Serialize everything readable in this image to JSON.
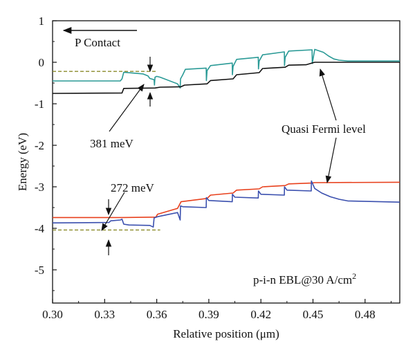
{
  "chart_data": {
    "type": "line",
    "xlabel": "Relative position (μm)",
    "ylabel": "Energy (eV)",
    "xlim": [
      0.3,
      0.5
    ],
    "ylim": [
      -5.8,
      1.0
    ],
    "x_ticks": [
      0.3,
      0.33,
      0.36,
      0.39,
      0.42,
      0.45,
      0.48
    ],
    "x_tick_labels": [
      "0.30",
      "0.33",
      "0.36",
      "0.39",
      "0.42",
      "0.45",
      "0.48"
    ],
    "y_ticks": [
      1,
      0,
      -1,
      -2,
      -3,
      -4,
      -5
    ],
    "y_tick_labels": [
      "1",
      "0",
      "-1",
      "-2",
      "-3",
      "-4",
      "-5"
    ],
    "grid": false,
    "colors": {
      "conduction_band": "#2a9a96",
      "quasi_fermi_upper": "#111111",
      "quasi_fermi_lower": "#e8401c",
      "valence_band": "#3a4fae",
      "dashed_reference": "#8a8a2a"
    },
    "series": [
      {
        "key": "conduction_band",
        "x": [
          0.3,
          0.339,
          0.34,
          0.341,
          0.352,
          0.355,
          0.356,
          0.3585,
          0.3587,
          0.359,
          0.36,
          0.362,
          0.372,
          0.3735,
          0.3737,
          0.375,
          0.3765,
          0.3885,
          0.3886,
          0.389,
          0.391,
          0.4035,
          0.4036,
          0.404,
          0.406,
          0.4185,
          0.4186,
          0.419,
          0.421,
          0.4335,
          0.4336,
          0.434,
          0.436,
          0.4495,
          0.4496,
          0.451,
          0.456,
          0.459,
          0.462,
          0.465,
          0.47,
          0.5
        ],
        "y": [
          -0.45,
          -0.45,
          -0.4,
          -0.24,
          -0.28,
          -0.33,
          -0.39,
          -0.42,
          -0.55,
          -0.36,
          -0.34,
          -0.36,
          -0.52,
          -0.62,
          -0.4,
          -0.3,
          -0.17,
          -0.14,
          -0.44,
          -0.2,
          -0.08,
          -0.02,
          -0.3,
          -0.1,
          0.07,
          0.12,
          -0.16,
          0.03,
          0.18,
          0.25,
          -0.08,
          0.12,
          0.27,
          0.3,
          -0.03,
          0.31,
          0.24,
          0.15,
          0.08,
          0.05,
          0.03,
          0.03
        ]
      },
      {
        "key": "quasi_fermi_upper",
        "x": [
          0.3,
          0.34,
          0.341,
          0.359,
          0.362,
          0.374,
          0.376,
          0.389,
          0.391,
          0.404,
          0.406,
          0.419,
          0.421,
          0.434,
          0.436,
          0.446,
          0.451,
          0.5
        ],
        "y": [
          -0.75,
          -0.74,
          -0.63,
          -0.62,
          -0.6,
          -0.59,
          -0.55,
          -0.52,
          -0.44,
          -0.4,
          -0.3,
          -0.25,
          -0.15,
          -0.12,
          -0.07,
          -0.06,
          0.0,
          0.0
        ]
      },
      {
        "key": "quasi_fermi_lower",
        "x": [
          0.3,
          0.34,
          0.3595,
          0.3605,
          0.372,
          0.374,
          0.389,
          0.391,
          0.404,
          0.406,
          0.419,
          0.421,
          0.434,
          0.436,
          0.449,
          0.451,
          0.5
        ],
        "y": [
          -3.74,
          -3.74,
          -3.73,
          -3.66,
          -3.52,
          -3.36,
          -3.28,
          -3.2,
          -3.15,
          -3.08,
          -3.05,
          -3.0,
          -2.97,
          -2.93,
          -2.91,
          -2.9,
          -2.89
        ]
      },
      {
        "key": "valence_band",
        "x": [
          0.3,
          0.3325,
          0.3335,
          0.339,
          0.34,
          0.341,
          0.344,
          0.356,
          0.358,
          0.3585,
          0.3605,
          0.372,
          0.3735,
          0.3737,
          0.375,
          0.3885,
          0.3886,
          0.39,
          0.4035,
          0.4036,
          0.405,
          0.4185,
          0.4186,
          0.42,
          0.4335,
          0.4336,
          0.435,
          0.449,
          0.4491,
          0.451,
          0.455,
          0.46,
          0.465,
          0.47,
          0.5
        ],
        "y": [
          -3.87,
          -3.86,
          -3.82,
          -3.8,
          -3.78,
          -3.9,
          -3.92,
          -3.93,
          -3.97,
          -3.75,
          -3.72,
          -3.62,
          -3.8,
          -3.46,
          -3.48,
          -3.5,
          -3.26,
          -3.33,
          -3.36,
          -3.18,
          -3.25,
          -3.27,
          -3.1,
          -3.18,
          -3.2,
          -3.0,
          -3.08,
          -3.1,
          -2.86,
          -3.04,
          -3.15,
          -3.24,
          -3.3,
          -3.34,
          -3.37
        ]
      },
      {
        "key": "dashed_reference_upper",
        "x": [
          0.3,
          0.36
        ],
        "y": [
          -0.22,
          -0.22
        ]
      },
      {
        "key": "dashed_reference_lower",
        "x": [
          0.3,
          0.362
        ],
        "y": [
          -4.04,
          -4.04
        ]
      }
    ],
    "annotations": {
      "p_contact": "P Contact",
      "gap_upper": "381 meV",
      "gap_lower": "272 meV",
      "fermi_label": "Quasi Fermi level",
      "condition": "p-i-n EBL@30 A/cm",
      "condition_sup": "2"
    }
  }
}
